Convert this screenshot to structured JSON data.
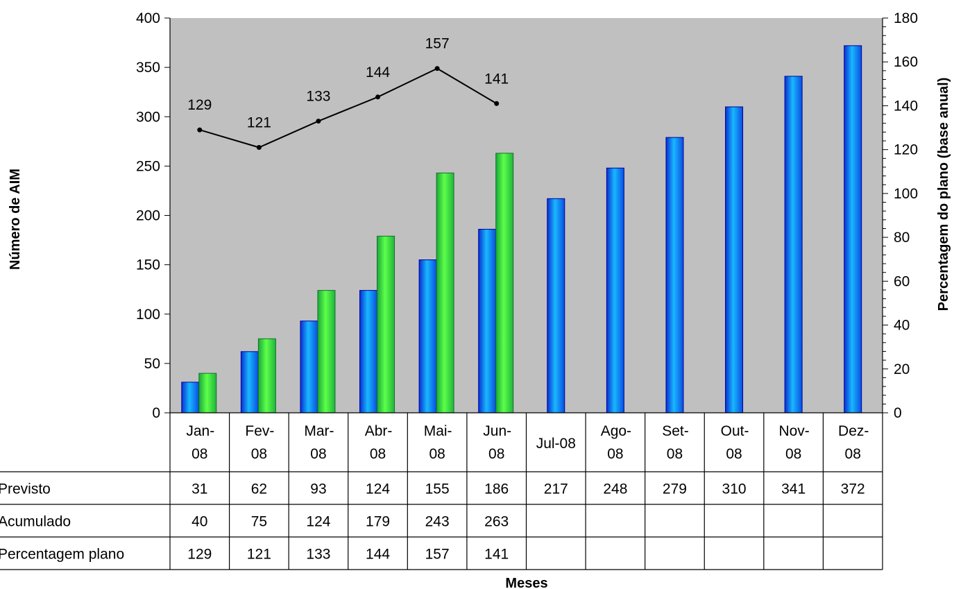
{
  "chart_data": {
    "type": "bar",
    "categories": [
      [
        "Jan-",
        "08"
      ],
      [
        "Fev-",
        "08"
      ],
      [
        "Mar-",
        "08"
      ],
      [
        "Abr-",
        "08"
      ],
      [
        "Mai-",
        "08"
      ],
      [
        "Jun-",
        "08"
      ],
      [
        "Jul-08"
      ],
      [
        "Ago-",
        "08"
      ],
      [
        "Set-",
        "08"
      ],
      [
        "Out-",
        "08"
      ],
      [
        "Nov-",
        "08"
      ],
      [
        "Dez-",
        "08"
      ]
    ],
    "series": [
      {
        "name": "Previsto",
        "kind": "bar",
        "axis": "left",
        "color": "#1e7fff",
        "values": [
          31,
          62,
          93,
          124,
          155,
          186,
          217,
          248,
          279,
          310,
          341,
          372
        ]
      },
      {
        "name": "Acumulado",
        "kind": "bar",
        "axis": "left",
        "color": "#33dd44",
        "values": [
          40,
          75,
          124,
          179,
          243,
          263,
          null,
          null,
          null,
          null,
          null,
          null
        ]
      },
      {
        "name": "Percentagem plano",
        "kind": "line",
        "axis": "right",
        "color": "#000000",
        "values": [
          129,
          121,
          133,
          144,
          157,
          141,
          null,
          null,
          null,
          null,
          null,
          null
        ]
      }
    ],
    "ylabel": "Número de AIM",
    "y2label": "Percentagem do plano (base anual)",
    "xlabel": "Meses",
    "ylim": [
      0,
      400
    ],
    "y2lim": [
      0,
      180
    ],
    "yticks": [
      0,
      50,
      100,
      150,
      200,
      250,
      300,
      350,
      400
    ],
    "y2ticks": [
      0,
      20,
      40,
      60,
      80,
      100,
      120,
      140,
      160,
      180
    ],
    "plot_background": "#c0c0c0",
    "grid": false,
    "legend": "data table below chart"
  }
}
